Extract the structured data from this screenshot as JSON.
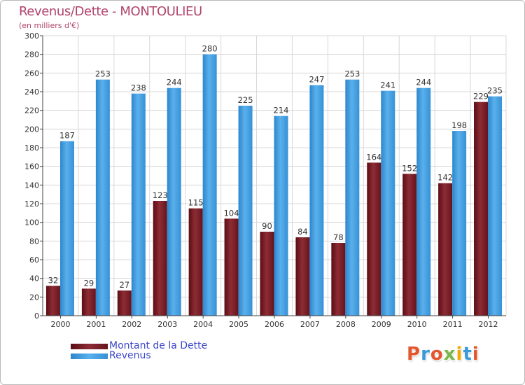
{
  "title": "Revenus/Dette - MONTOULIEU",
  "subtitle": "(en milliers d'€)",
  "brand": "Proxiti",
  "colors": {
    "debt": "#7a1f27",
    "revenue": "#3f9fe0",
    "title": "#b1436b",
    "legend_text": "#3c46c9",
    "grid": "#d8d8d8",
    "brand_letters": [
      "#e4572e",
      "#3a9ad9",
      "#e4572e",
      "#7ab648",
      "#f2a900",
      "#3a9ad9",
      "#e4572e"
    ]
  },
  "legend": {
    "items": [
      {
        "label": "Montant de la Dette",
        "color": "#7a1f27"
      },
      {
        "label": "Revenus",
        "color": "#3f9fe0"
      }
    ],
    "placement": "bottom-left"
  },
  "chart_data": {
    "type": "bar",
    "title": "Revenus/Dette - MONTOULIEU",
    "subtitle": "(en milliers d'€)",
    "xlabel": "",
    "ylabel": "",
    "categories": [
      "2000",
      "2001",
      "2002",
      "2003",
      "2004",
      "2005",
      "2006",
      "2007",
      "2008",
      "2009",
      "2010",
      "2011",
      "2012"
    ],
    "series": [
      {
        "name": "Montant de la Dette",
        "values": [
          32,
          29,
          27,
          123,
          115,
          104,
          90,
          84,
          78,
          164,
          152,
          142,
          229
        ]
      },
      {
        "name": "Revenus",
        "values": [
          187,
          253,
          238,
          244,
          280,
          225,
          214,
          247,
          253,
          241,
          244,
          198,
          235
        ]
      }
    ],
    "ylim": [
      0,
      300
    ],
    "yticks": [
      0,
      20,
      40,
      60,
      80,
      100,
      120,
      140,
      160,
      180,
      200,
      220,
      240,
      260,
      280,
      300
    ],
    "grid": true,
    "data_labels": true
  }
}
